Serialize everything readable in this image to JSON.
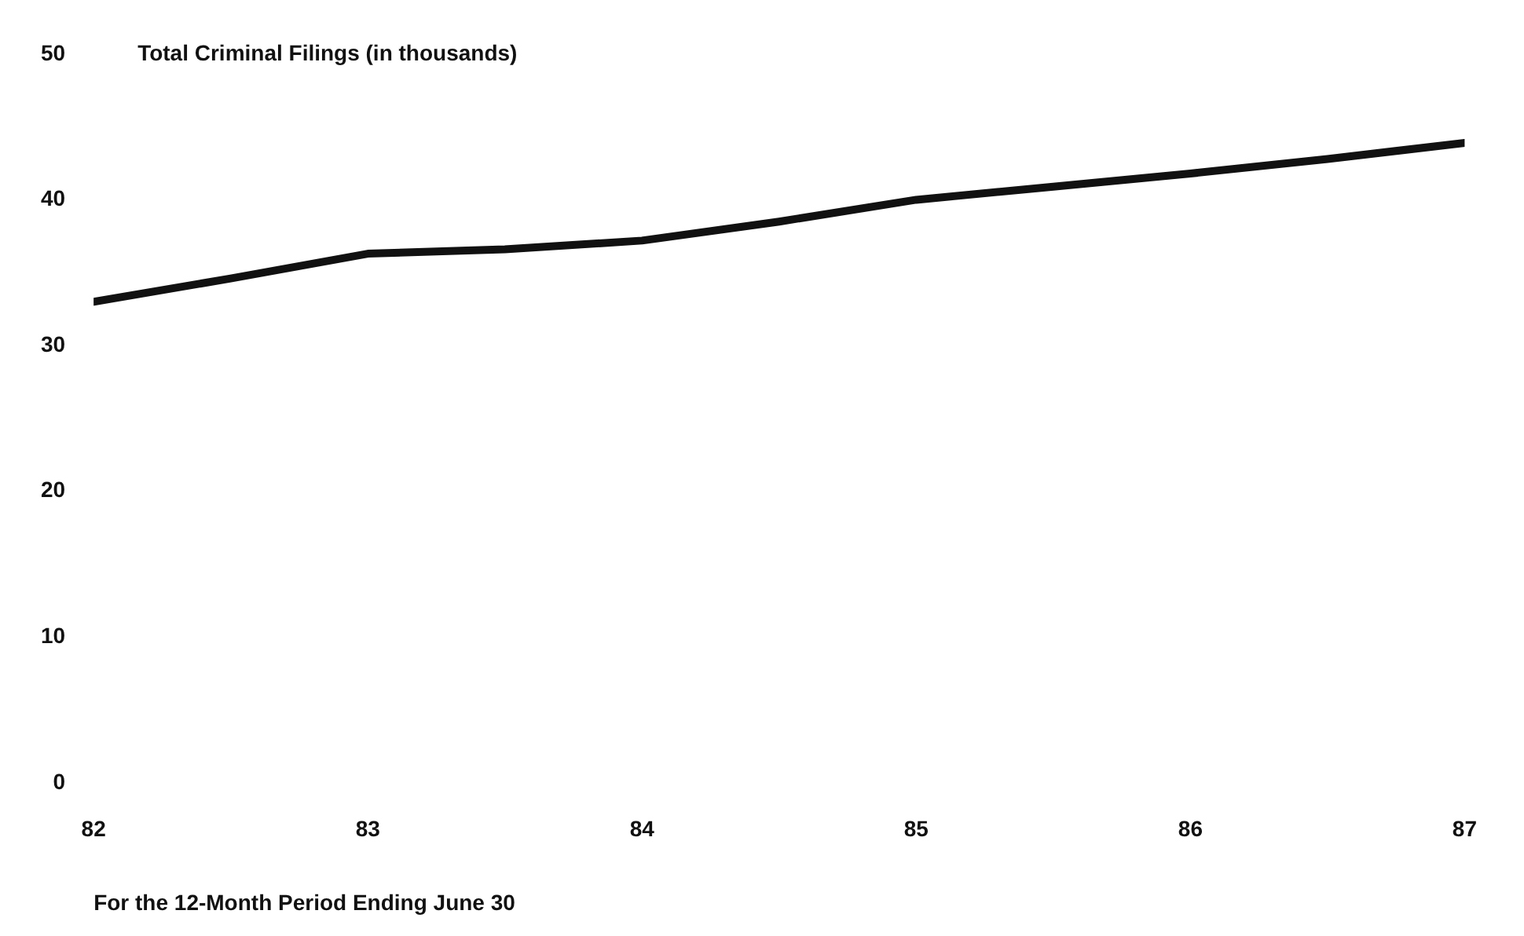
{
  "chart_data": {
    "type": "line",
    "title": "Total Criminal Filings (in thousands)",
    "xlabel": "For the 12-Month Period Ending June 30",
    "x": [
      82,
      82.5,
      83,
      83.5,
      84,
      84.5,
      85,
      85.5,
      86,
      86.5,
      87
    ],
    "series": [
      {
        "color": "#111111",
        "values": [
          33,
          34.6,
          36.3,
          36.6,
          37.2,
          38.5,
          40,
          40.9,
          41.8,
          42.8,
          43.9
        ]
      }
    ],
    "xlim": [
      82,
      87
    ],
    "xticks": [
      82,
      83,
      84,
      85,
      86,
      87
    ],
    "ylim": [
      0,
      50
    ],
    "yticks": [
      0,
      10,
      20,
      30,
      40,
      50
    ],
    "grid": false,
    "legend": false,
    "marker": "none",
    "line_style": "solid"
  }
}
